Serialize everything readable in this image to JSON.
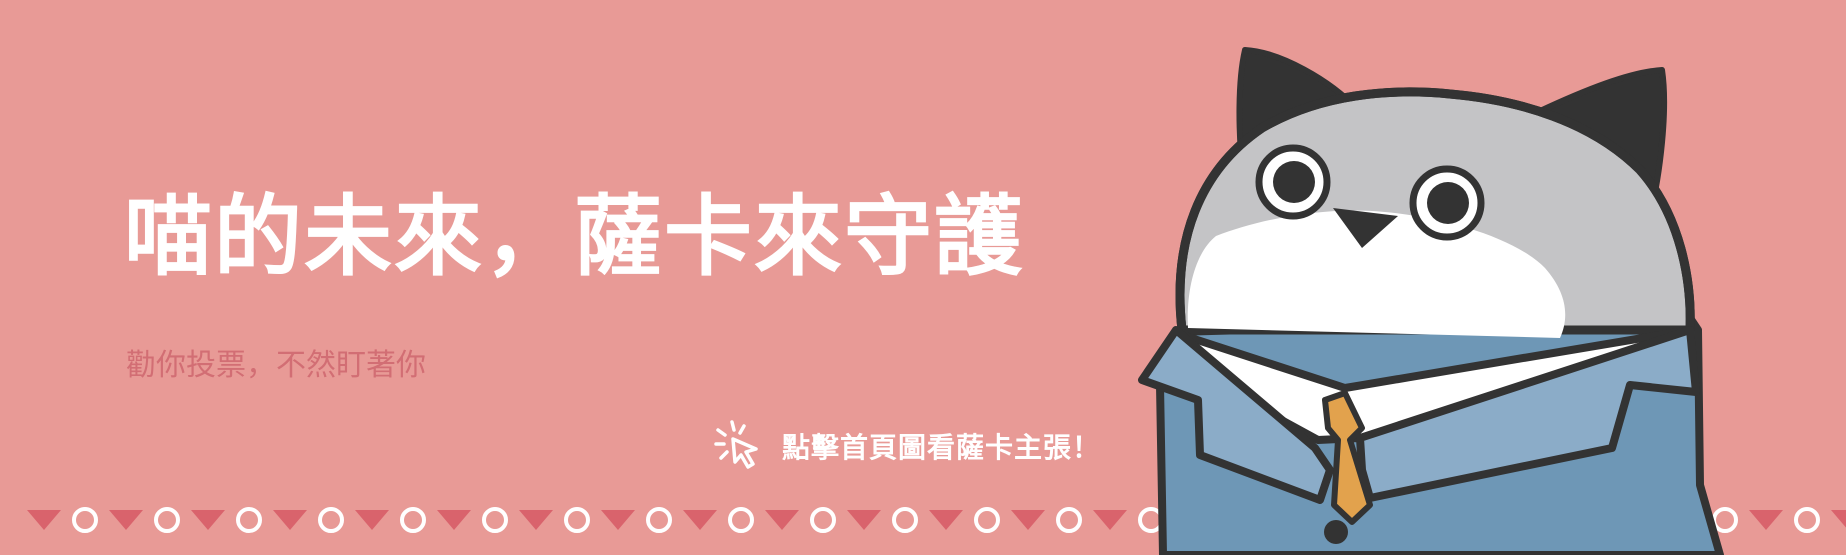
{
  "banner": {
    "headline": "喵的未來，薩卡來守護",
    "subline": "勸你投票，不然盯著你",
    "cta": {
      "label": "點擊首頁圖看薩卡主張！",
      "icon": "click-cursor-icon"
    },
    "mascot": {
      "name": "cat-mascot-in-suit",
      "icon": "cat-mascot-illustration"
    },
    "decorative_border": {
      "pattern": [
        "triangle",
        "circle"
      ],
      "icons": [
        "down-triangle-icon",
        "ring-circle-icon"
      ]
    },
    "colors": {
      "background": "#e89a96",
      "headline": "#ffffff",
      "subline": "#d26e74",
      "border_triangle": "#d9636c",
      "border_ring": "#ffffff",
      "mascot_outline": "#333333",
      "mascot_fur_gray": "#c4c4c6",
      "mascot_suit": "#6e97b6",
      "mascot_tie": "#e2a24d"
    }
  }
}
